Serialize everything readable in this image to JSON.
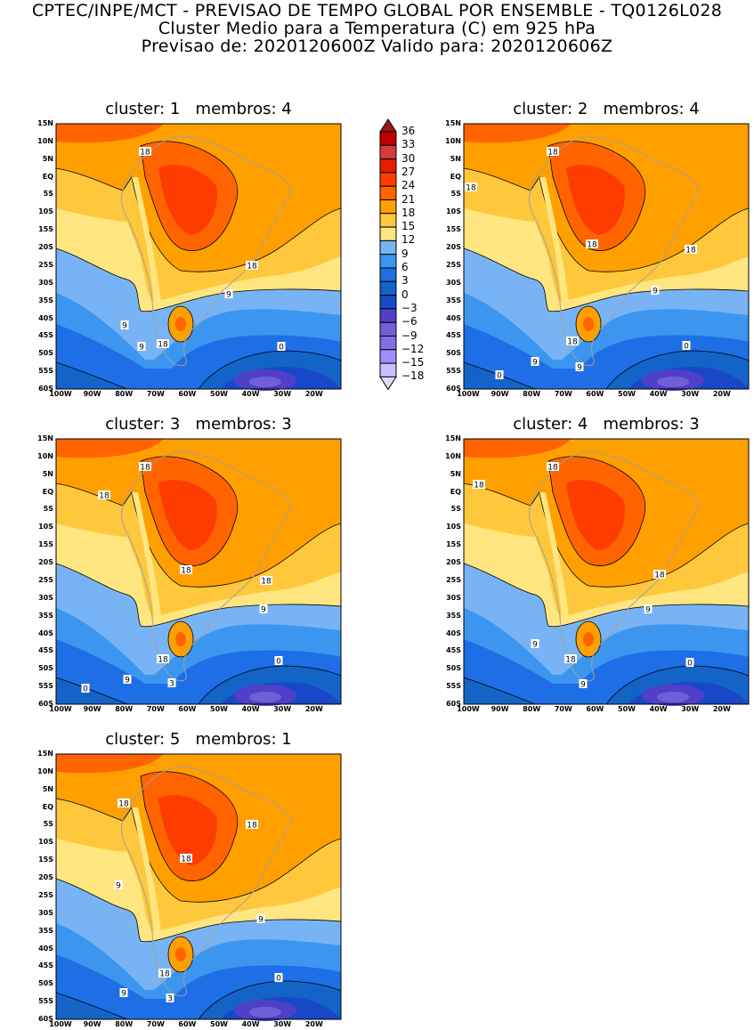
{
  "header": {
    "line1": "CPTEC/INPE/MCT - PREVISAO DE TEMPO GLOBAL POR ENSEMBLE - TQ0126L028",
    "line2": "Cluster Medio para a Temperatura (C) em 925 hPa",
    "line3": "Previsao de: 2020120600Z    Valido para: 2020120606Z"
  },
  "axes": {
    "lat_labels": [
      "15N",
      "10N",
      "5N",
      "EQ",
      "5S",
      "10S",
      "15S",
      "20S",
      "25S",
      "30S",
      "35S",
      "40S",
      "45S",
      "50S",
      "55S",
      "60S"
    ],
    "lon_labels": [
      "100W",
      "90W",
      "80W",
      "70W",
      "60W",
      "50W",
      "40W",
      "30W",
      "20W"
    ]
  },
  "panels": [
    {
      "title": "cluster: 1   membros: 4",
      "contour_labels": [
        "18",
        "18",
        "9",
        "9",
        "9",
        "18",
        "0"
      ]
    },
    {
      "title": "cluster: 2   membros: 4",
      "contour_labels": [
        "18",
        "18",
        "18",
        "18",
        "9",
        "0",
        "9",
        "9",
        "0",
        "18"
      ]
    },
    {
      "title": "cluster: 3   membros: 3",
      "contour_labels": [
        "18",
        "18",
        "18",
        "18",
        "9",
        "0",
        "18",
        "9",
        "3",
        "0"
      ]
    },
    {
      "title": "cluster: 4   membros: 3",
      "contour_labels": [
        "18",
        "18",
        "18",
        "9",
        "9",
        "18",
        "0",
        "9"
      ]
    },
    {
      "title": "cluster: 5   membros: 1",
      "contour_labels": [
        "18",
        "18",
        "18",
        "9",
        "9",
        "18",
        "0",
        "9",
        "3"
      ]
    }
  ],
  "colorbar": {
    "labels": [
      "36",
      "33",
      "30",
      "27",
      "24",
      "21",
      "18",
      "15",
      "12",
      "9",
      "6",
      "3",
      "0",
      "-3",
      "-6",
      "-9",
      "-12",
      "-15",
      "-18"
    ],
    "colors_top_to_bottom": [
      "#a01414",
      "#c00000",
      "#d23c3c",
      "#e61e00",
      "#ff3c00",
      "#ff6400",
      "#ffa000",
      "#ffc83c",
      "#ffe680",
      "#78b4f5",
      "#3c96f0",
      "#1e6ee6",
      "#1464c8",
      "#1848c8",
      "#5040c8",
      "#7060d8",
      "#8070e8",
      "#a090ff",
      "#c8c0ff",
      "#e0dcff"
    ]
  }
}
